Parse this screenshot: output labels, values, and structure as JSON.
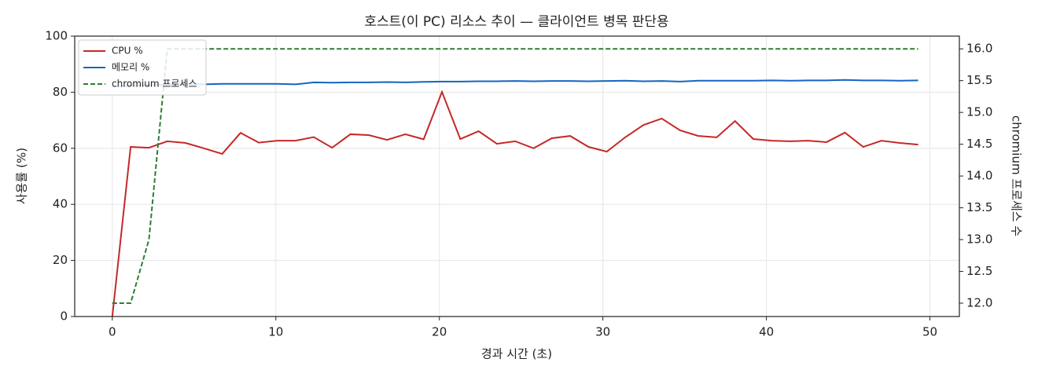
{
  "chart_data": {
    "type": "line",
    "title": "호스트(이 PC) 리소스 추이 — 클라이언트 병목 판단용",
    "x_label": "경과 시간 (초)",
    "y_label": "사용률 (%)",
    "y2_label": "chromium 프로세스 수",
    "x": [
      0,
      1.12,
      2.24,
      3.36,
      4.48,
      5.6,
      6.72,
      7.84,
      8.96,
      10.08,
      11.2,
      12.32,
      13.44,
      14.56,
      15.68,
      16.8,
      17.92,
      19.04,
      20.16,
      21.28,
      22.4,
      23.52,
      24.64,
      25.76,
      26.88,
      28,
      29.12,
      30.24,
      31.36,
      32.48,
      33.6,
      34.72,
      35.84,
      36.96,
      38.08,
      39.2,
      40.32,
      41.44,
      42.56,
      43.68,
      44.8,
      45.92,
      47.04,
      48.16,
      49.28
    ],
    "series": [
      {
        "name": "CPU %",
        "color": "#c62828",
        "dash": "solid",
        "values": [
          0,
          60.5,
          60.2,
          62.5,
          61.9,
          60,
          58,
          65.5,
          62,
          62.7,
          62.7,
          64,
          60.2,
          65,
          64.7,
          63,
          65,
          63.2,
          80.1,
          63.3,
          66.1,
          61.6,
          62.5,
          60,
          63.6,
          64.4,
          60.5,
          58.8,
          63.9,
          68.3,
          70.6,
          66.4,
          64.4,
          63.9,
          69.7,
          63.3,
          62.7,
          62.5,
          62.7,
          62.2,
          65.6,
          60.5,
          62.7,
          61.9,
          61.3
        ]
      },
      {
        "name": "메모리 %",
        "color": "#1565c0",
        "dash": "solid",
        "values": [
          82.0,
          82.3,
          82.5,
          82.6,
          82.8,
          82.8,
          83.0,
          83.0,
          83.0,
          83.0,
          82.8,
          83.5,
          83.4,
          83.5,
          83.5,
          83.6,
          83.5,
          83.7,
          83.8,
          83.8,
          83.9,
          83.9,
          84.0,
          83.9,
          84.0,
          84.0,
          83.9,
          84.0,
          84.1,
          83.9,
          84.0,
          83.8,
          84.1,
          84.1,
          84.1,
          84.1,
          84.2,
          84.1,
          84.2,
          84.2,
          84.4,
          84.2,
          84.2,
          84.1,
          84.2
        ]
      },
      {
        "name": "chromium 프로세스",
        "color": "#2e7d32",
        "dash": "dashed",
        "axis": "y2",
        "values": [
          12,
          12,
          13,
          16,
          16,
          16,
          16,
          16,
          16,
          16,
          16,
          16,
          16,
          16,
          16,
          16,
          16,
          16,
          16,
          16,
          16,
          16,
          16,
          16,
          16,
          16,
          16,
          16,
          16,
          16,
          16,
          16,
          16,
          16,
          16,
          16,
          16,
          16,
          16,
          16,
          16,
          16,
          16,
          16,
          16
        ]
      }
    ],
    "xlim": [
      -2.3,
      51.8
    ],
    "xticks": [
      0,
      10,
      20,
      30,
      40,
      50
    ],
    "ylim": [
      0,
      100
    ],
    "yticks": [
      0,
      20,
      40,
      60,
      80,
      100
    ],
    "y2lim": [
      11.79,
      16.2
    ],
    "y2ticks": [
      {
        "value": 12,
        "label": "12.0"
      },
      {
        "value": 12.5,
        "label": "12.5"
      },
      {
        "value": 13,
        "label": "13.0"
      },
      {
        "value": 13.5,
        "label": "13.5"
      },
      {
        "value": 14,
        "label": "14.0"
      },
      {
        "value": 14.5,
        "label": "14.5"
      },
      {
        "value": 15,
        "label": "15.0"
      },
      {
        "value": 15.5,
        "label": "15.5"
      },
      {
        "value": 16,
        "label": "16.0"
      }
    ],
    "grid": true,
    "legend": "upper-left"
  }
}
